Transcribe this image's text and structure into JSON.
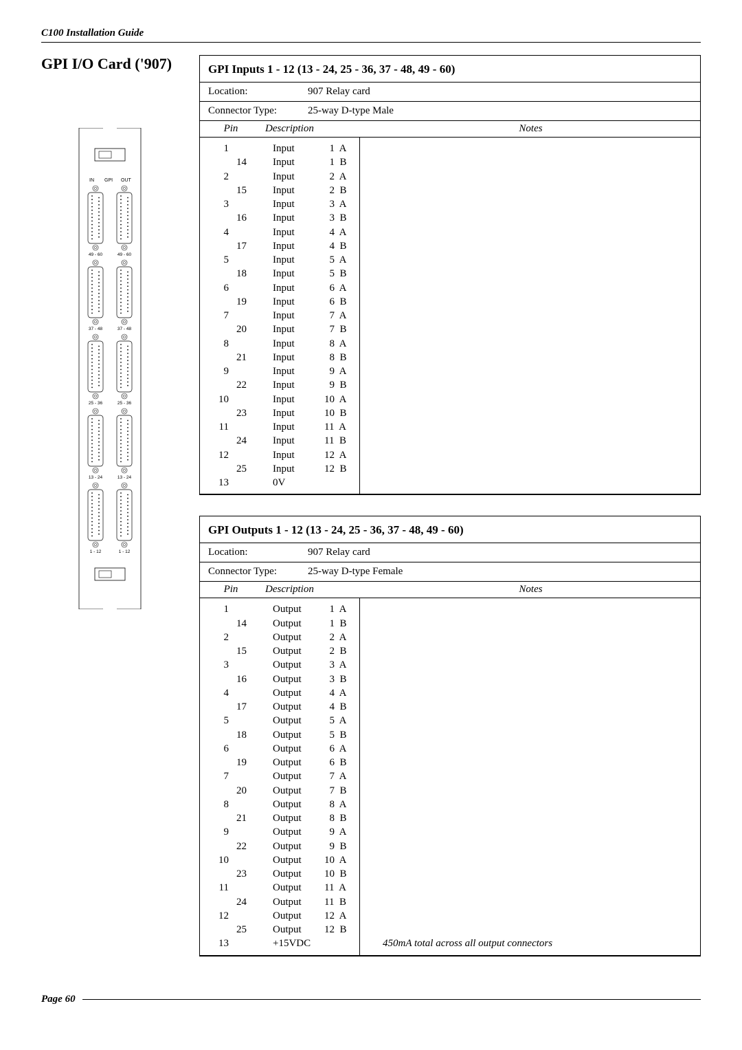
{
  "header": {
    "doc_title": "C100 Installation Guide"
  },
  "page_title": "GPI I/O Card ('907)",
  "footer": {
    "page_label": "Page 60"
  },
  "card_diagram": {
    "top_labels": {
      "in": "IN",
      "gpi": "GPI",
      "out": "OUT"
    },
    "connector_pairs": [
      {
        "left": "49 - 60",
        "right": "49 - 60"
      },
      {
        "left": "37 - 48",
        "right": "37 - 48"
      },
      {
        "left": "25 - 36",
        "right": "25 - 36"
      },
      {
        "left": "13 - 24",
        "right": "13 - 24"
      },
      {
        "left": "1 - 12",
        "right": "1 - 12"
      }
    ]
  },
  "tables": [
    {
      "title": "GPI Inputs 1 - 12 (13 - 24, 25 - 36, 37 - 48, 49 - 60)",
      "meta": [
        {
          "label": "Location:",
          "value": "907 Relay card"
        },
        {
          "label": "Connector Type:",
          "value": "25-way D-type Male"
        }
      ],
      "columns": {
        "pin": "Pin",
        "desc": "Description",
        "notes": "Notes"
      },
      "rows": [
        {
          "pin": "1",
          "indent": "even",
          "desc": "Input",
          "sig": "  1  A",
          "note": ""
        },
        {
          "pin": "14",
          "indent": "odd",
          "desc": "Input",
          "sig": "  1  B",
          "note": ""
        },
        {
          "pin": "2",
          "indent": "even",
          "desc": "Input",
          "sig": "  2  A",
          "note": ""
        },
        {
          "pin": "15",
          "indent": "odd",
          "desc": "Input",
          "sig": "  2  B",
          "note": ""
        },
        {
          "pin": "3",
          "indent": "even",
          "desc": "Input",
          "sig": "  3  A",
          "note": ""
        },
        {
          "pin": "16",
          "indent": "odd",
          "desc": "Input",
          "sig": "  3  B",
          "note": ""
        },
        {
          "pin": "4",
          "indent": "even",
          "desc": "Input",
          "sig": "  4  A",
          "note": ""
        },
        {
          "pin": "17",
          "indent": "odd",
          "desc": "Input",
          "sig": "  4  B",
          "note": ""
        },
        {
          "pin": "5",
          "indent": "even",
          "desc": "Input",
          "sig": "  5  A",
          "note": ""
        },
        {
          "pin": "18",
          "indent": "odd",
          "desc": "Input",
          "sig": "  5  B",
          "note": ""
        },
        {
          "pin": "6",
          "indent": "even",
          "desc": "Input",
          "sig": "  6  A",
          "note": ""
        },
        {
          "pin": "19",
          "indent": "odd",
          "desc": "Input",
          "sig": "  6  B",
          "note": ""
        },
        {
          "pin": "7",
          "indent": "even",
          "desc": "Input",
          "sig": "  7  A",
          "note": ""
        },
        {
          "pin": "20",
          "indent": "odd",
          "desc": "Input",
          "sig": "  7  B",
          "note": ""
        },
        {
          "pin": "8",
          "indent": "even",
          "desc": "Input",
          "sig": "  8  A",
          "note": ""
        },
        {
          "pin": "21",
          "indent": "odd",
          "desc": "Input",
          "sig": "  8  B",
          "note": ""
        },
        {
          "pin": "9",
          "indent": "even",
          "desc": "Input",
          "sig": "  9  A",
          "note": ""
        },
        {
          "pin": "22",
          "indent": "odd",
          "desc": "Input",
          "sig": "  9  B",
          "note": ""
        },
        {
          "pin": "10",
          "indent": "even",
          "desc": "Input",
          "sig": "10  A",
          "note": ""
        },
        {
          "pin": "23",
          "indent": "odd",
          "desc": "Input",
          "sig": "10  B",
          "note": ""
        },
        {
          "pin": "11",
          "indent": "even",
          "desc": "Input",
          "sig": "11  A",
          "note": ""
        },
        {
          "pin": "24",
          "indent": "odd",
          "desc": "Input",
          "sig": "11  B",
          "note": ""
        },
        {
          "pin": "12",
          "indent": "even",
          "desc": "Input",
          "sig": "12  A",
          "note": ""
        },
        {
          "pin": "25",
          "indent": "odd",
          "desc": "Input",
          "sig": "12  B",
          "note": ""
        },
        {
          "pin": "13",
          "indent": "even",
          "desc": "0V",
          "sig": "",
          "note": ""
        }
      ]
    },
    {
      "title": "GPI Outputs 1 - 12 (13 - 24, 25 - 36, 37 - 48, 49 - 60)",
      "meta": [
        {
          "label": "Location:",
          "value": "907 Relay card"
        },
        {
          "label": "Connector Type:",
          "value": "25-way D-type Female"
        }
      ],
      "columns": {
        "pin": "Pin",
        "desc": "Description",
        "notes": "Notes"
      },
      "rows": [
        {
          "pin": "1",
          "indent": "even",
          "desc": "Output",
          "sig": "  1  A",
          "note": ""
        },
        {
          "pin": "14",
          "indent": "odd",
          "desc": "Output",
          "sig": "  1  B",
          "note": ""
        },
        {
          "pin": "2",
          "indent": "even",
          "desc": "Output",
          "sig": "  2  A",
          "note": ""
        },
        {
          "pin": "15",
          "indent": "odd",
          "desc": "Output",
          "sig": "  2  B",
          "note": ""
        },
        {
          "pin": "3",
          "indent": "even",
          "desc": "Output",
          "sig": "  3  A",
          "note": ""
        },
        {
          "pin": "16",
          "indent": "odd",
          "desc": "Output",
          "sig": "  3  B",
          "note": ""
        },
        {
          "pin": "4",
          "indent": "even",
          "desc": "Output",
          "sig": "  4  A",
          "note": ""
        },
        {
          "pin": "17",
          "indent": "odd",
          "desc": "Output",
          "sig": "  4  B",
          "note": ""
        },
        {
          "pin": "5",
          "indent": "even",
          "desc": "Output",
          "sig": "  5  A",
          "note": ""
        },
        {
          "pin": "18",
          "indent": "odd",
          "desc": "Output",
          "sig": "  5  B",
          "note": ""
        },
        {
          "pin": "6",
          "indent": "even",
          "desc": "Output",
          "sig": "  6  A",
          "note": ""
        },
        {
          "pin": "19",
          "indent": "odd",
          "desc": "Output",
          "sig": "  6  B",
          "note": ""
        },
        {
          "pin": "7",
          "indent": "even",
          "desc": "Output",
          "sig": "  7  A",
          "note": ""
        },
        {
          "pin": "20",
          "indent": "odd",
          "desc": "Output",
          "sig": "  7  B",
          "note": ""
        },
        {
          "pin": "8",
          "indent": "even",
          "desc": "Output",
          "sig": "  8  A",
          "note": ""
        },
        {
          "pin": "21",
          "indent": "odd",
          "desc": "Output",
          "sig": "  8  B",
          "note": ""
        },
        {
          "pin": "9",
          "indent": "even",
          "desc": "Output",
          "sig": "  9  A",
          "note": ""
        },
        {
          "pin": "22",
          "indent": "odd",
          "desc": "Output",
          "sig": "  9  B",
          "note": ""
        },
        {
          "pin": "10",
          "indent": "even",
          "desc": "Output",
          "sig": "10  A",
          "note": ""
        },
        {
          "pin": "23",
          "indent": "odd",
          "desc": "Output",
          "sig": "10  B",
          "note": ""
        },
        {
          "pin": "11",
          "indent": "even",
          "desc": "Output",
          "sig": "11  A",
          "note": ""
        },
        {
          "pin": "24",
          "indent": "odd",
          "desc": "Output",
          "sig": "11  B",
          "note": ""
        },
        {
          "pin": "12",
          "indent": "even",
          "desc": "Output",
          "sig": "12  A",
          "note": ""
        },
        {
          "pin": "25",
          "indent": "odd",
          "desc": "Output",
          "sig": "12  B",
          "note": ""
        },
        {
          "pin": "13",
          "indent": "even",
          "desc": "+15VDC",
          "sig": "",
          "note": "450mA total across all output connectors"
        }
      ]
    }
  ]
}
